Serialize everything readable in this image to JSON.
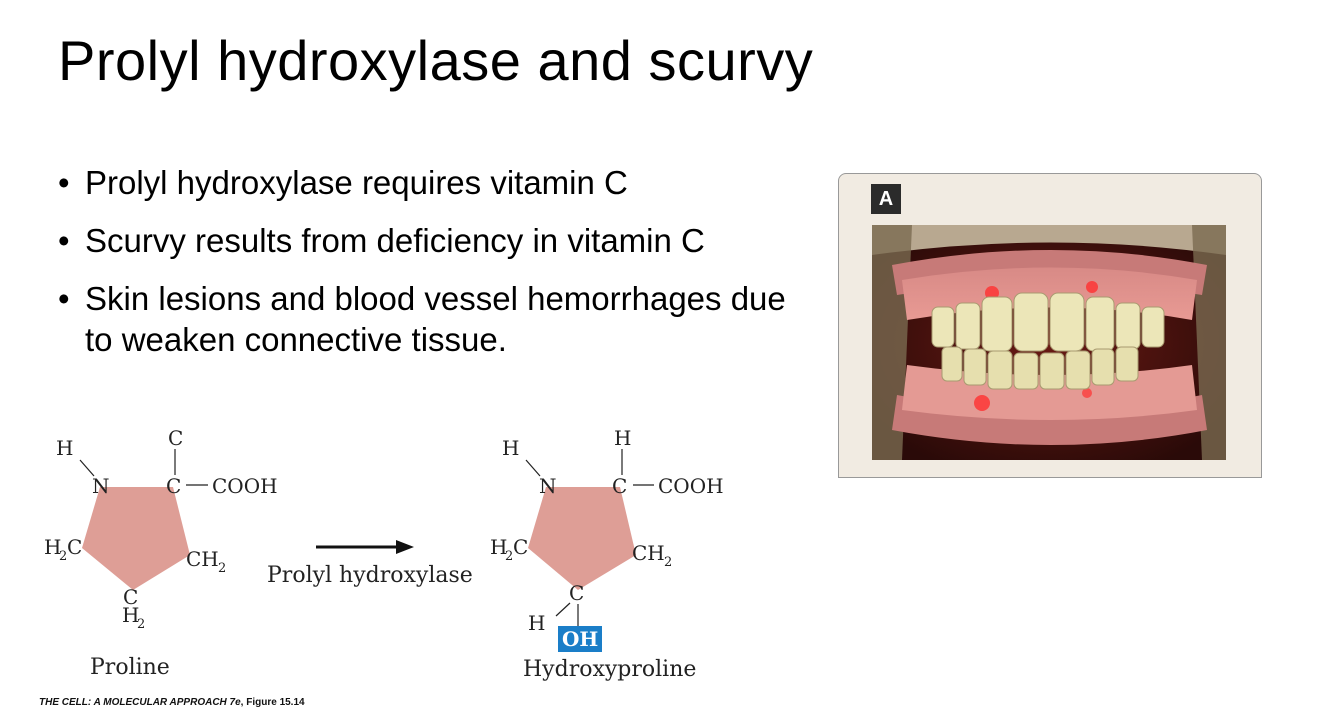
{
  "slide": {
    "title": "Prolyl hydroxylase and scurvy",
    "bullets": [
      "Prolyl hydroxylase requires vitamin C",
      "Scurvy results from deficiency in vitamin C",
      "Skin lesions and blood vessel hemorrhages due to weaken connective tissue."
    ]
  },
  "photo": {
    "panel_label": "A"
  },
  "diagram": {
    "proline": {
      "name": "Proline",
      "top_c": "C",
      "n": "N",
      "h_on_n": "H",
      "c_alpha": "C",
      "cooh": "COOH",
      "h2c_left": "H",
      "h2c_sub": "2",
      "h2c_c": "C",
      "ch2_c": "CH",
      "ch2_sub": "2",
      "bottom_c": "C",
      "bottom_h": "H",
      "bottom_sub": "2"
    },
    "arrow_label": "Prolyl hydroxylase",
    "hydroxyproline": {
      "name": "Hydroxyproline",
      "top_h": "H",
      "n": "N",
      "h_on_n": "H",
      "c_alpha": "C",
      "cooh": "COOH",
      "h2c_left": "H",
      "h2c_sub": "2",
      "h2c_c": "C",
      "ch2_c": "CH",
      "ch2_sub": "2",
      "bottom_c": "C",
      "h_left": "H",
      "oh": "OH"
    },
    "colors": {
      "ring_fill": "#de9e96",
      "oh_box": "#1a7ec8"
    }
  },
  "caption": {
    "book": "THE CELL: A MOLECULAR APPROACH 7e",
    "figure": ", Figure 15.14"
  }
}
